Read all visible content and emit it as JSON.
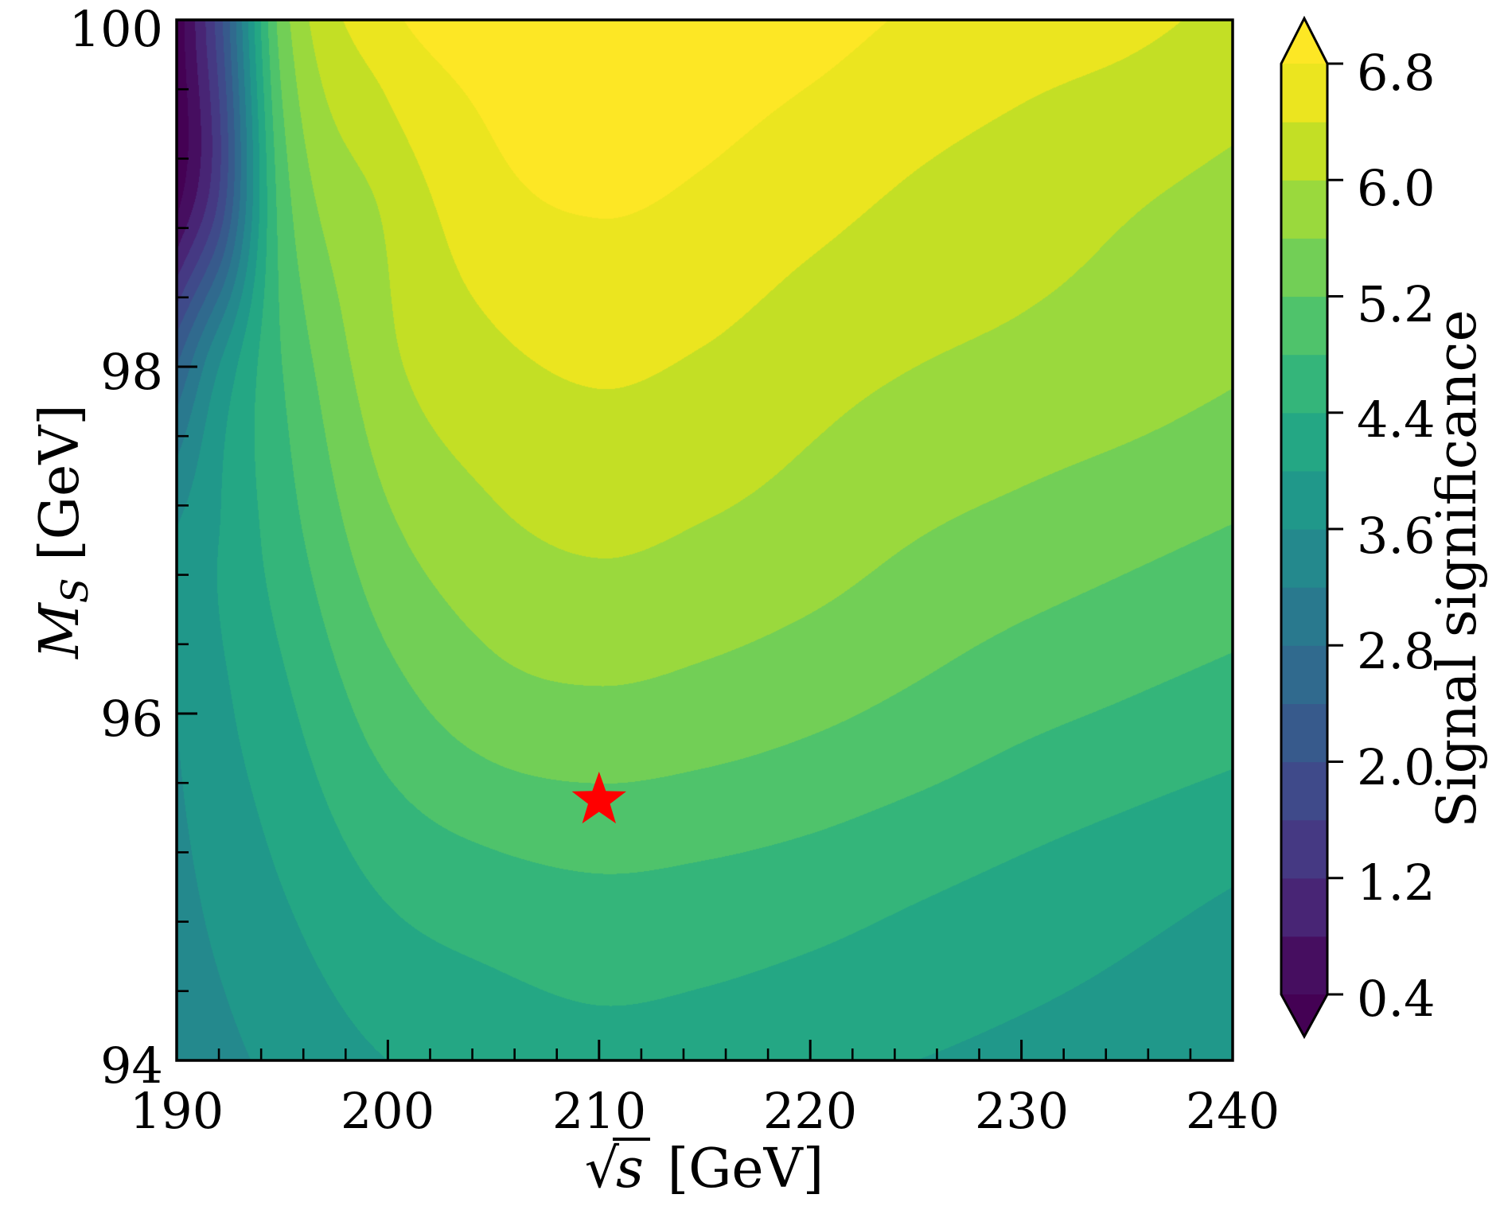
{
  "chart_data": {
    "type": "filled_contour",
    "title": "",
    "xlabel": "sqrt(s) [GeV]",
    "ylabel": "M_S [GeV]",
    "colorbar_label": "Signal significance",
    "colormap": "viridis",
    "x_range": [
      190,
      240
    ],
    "y_range": [
      94,
      100
    ],
    "x_major_tick_values": [
      190,
      200,
      210,
      220,
      230,
      240
    ],
    "x_major_ticks": [
      "190",
      "200",
      "210",
      "220",
      "230",
      "240"
    ],
    "x_minor_step": 2,
    "y_major_tick_values": [
      100,
      98,
      96,
      94
    ],
    "y_major_ticks": [
      "100",
      "98",
      "96",
      "94"
    ],
    "y_minor_step": 0.4,
    "contour_levels_start": 0.4,
    "contour_levels_step": 0.4,
    "contour_levels_end": 6.8,
    "colorbar_extend": "both",
    "colorbar_tick_values": [
      6.8,
      6.0,
      5.2,
      4.4,
      3.6,
      2.8,
      2.0,
      1.2,
      0.4
    ],
    "colorbar_ticks": [
      "6.8",
      "6.0",
      "5.2",
      "4.4",
      "3.6",
      "2.8",
      "2.0",
      "1.2",
      "0.4"
    ],
    "grid_x": [
      190,
      192,
      195,
      200,
      205,
      210,
      215,
      220,
      225,
      230,
      235,
      240
    ],
    "grid_y_top_to_bottom": [
      100,
      99,
      98,
      97,
      96,
      95,
      94
    ],
    "grid_values_rows_top_to_bottom": [
      [
        0.1,
        1.8,
        5.4,
        6.7,
        7.0,
        7.1,
        7.05,
        6.95,
        6.75,
        6.6,
        6.5,
        6.3
      ],
      [
        0.2,
        1.6,
        5.0,
        6.1,
        6.7,
        6.85,
        6.75,
        6.55,
        6.35,
        6.2,
        6.05,
        5.9
      ],
      [
        2.4,
        3.6,
        4.8,
        5.9,
        6.3,
        6.45,
        6.35,
        6.15,
        6.0,
        5.9,
        5.8,
        5.65
      ],
      [
        3.65,
        4.0,
        4.6,
        5.5,
        5.9,
        6.05,
        5.95,
        5.8,
        5.6,
        5.45,
        5.3,
        5.15
      ],
      [
        3.6,
        3.9,
        4.3,
        5.0,
        5.4,
        5.5,
        5.42,
        5.28,
        5.1,
        4.9,
        4.75,
        4.6
      ],
      [
        3.5,
        3.7,
        4.0,
        4.45,
        4.65,
        4.75,
        4.7,
        4.6,
        4.45,
        4.3,
        4.15,
        4.0
      ],
      [
        3.4,
        3.5,
        3.7,
        4.0,
        4.15,
        4.25,
        4.2,
        4.1,
        4.0,
        3.9,
        3.82,
        3.75
      ]
    ],
    "marker": {
      "type": "star",
      "x": 210,
      "y": 95.5,
      "color": "#ff0000"
    },
    "viridis_anchor_colors": [
      "#440154",
      "#481a6c",
      "#472f7d",
      "#424289",
      "#3b528b",
      "#33628d",
      "#2c718e",
      "#26808e",
      "#21918c",
      "#1f9f88",
      "#28ae80",
      "#3fbc73",
      "#5ec962",
      "#86d549",
      "#addc30",
      "#d8e219",
      "#fde725"
    ],
    "axis_color": "#000000"
  },
  "labels": {
    "xlabel_sqrt": "√",
    "xlabel_s": "s",
    "xlabel_unit": "[GeV]",
    "ylabel_M": "M",
    "ylabel_sub": "S",
    "ylabel_unit": "[GeV]",
    "colorbar_label": "Signal significance"
  }
}
